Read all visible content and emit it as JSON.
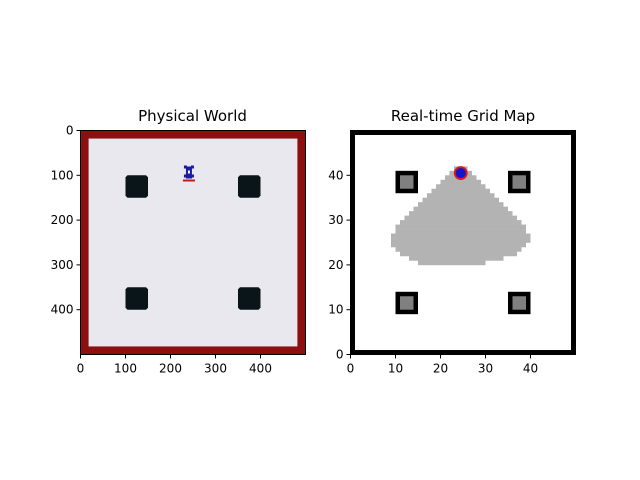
{
  "figure": {
    "background": "#ffffff"
  },
  "chart_data": [
    {
      "type": "image",
      "title": "Physical World",
      "xlabel": "",
      "ylabel": "",
      "xlim": [
        0,
        500
      ],
      "ylim": [
        500,
        0
      ],
      "y_inverted": true,
      "grid": false,
      "x_ticks": [
        0,
        100,
        200,
        300,
        400
      ],
      "y_ticks": [
        0,
        100,
        200,
        300,
        400
      ],
      "colors": {
        "wall": "#8c1010",
        "floor": "#e9e8ee",
        "obstacle": "#0a1519",
        "robot_body": "#1a1aa8",
        "robot_mark": "#c81818"
      },
      "wall_thickness": 18,
      "obstacles": [
        {
          "x": 100,
          "y": 100,
          "w": 50,
          "h": 50
        },
        {
          "x": 350,
          "y": 100,
          "w": 50,
          "h": 50
        },
        {
          "x": 100,
          "y": 350,
          "w": 50,
          "h": 50
        },
        {
          "x": 350,
          "y": 350,
          "w": 50,
          "h": 50
        }
      ],
      "robot": {
        "x": 241,
        "y": 96,
        "heading": "up"
      }
    },
    {
      "type": "heatmap",
      "title": "Real-time Grid Map",
      "xlabel": "",
      "ylabel": "",
      "xlim": [
        0,
        50
      ],
      "ylim": [
        0,
        50
      ],
      "grid": false,
      "x_ticks": [
        0,
        10,
        20,
        30,
        40
      ],
      "y_ticks": [
        0,
        10,
        20,
        30,
        40
      ],
      "colors": {
        "unknown": "#ffffff",
        "occupied": "#000000",
        "explored": "#b3b3b3",
        "inner": "#808080",
        "robot_fill": "#1515c8",
        "robot_edge": "#e01818"
      },
      "border": [
        0,
        49
      ],
      "obstacle_boxes": [
        {
          "x0": 10,
          "x1": 14,
          "y0": 36,
          "y1": 40
        },
        {
          "x0": 35,
          "x1": 39,
          "y0": 36,
          "y1": 40
        },
        {
          "x0": 10,
          "x1": 14,
          "y0": 9,
          "y1": 13
        },
        {
          "x0": 35,
          "x1": 39,
          "y0": 9,
          "y1": 13
        }
      ],
      "explored_rows": [
        {
          "y": 41,
          "x0": 23,
          "x1": 25
        },
        {
          "y": 40,
          "x0": 22,
          "x1": 26
        },
        {
          "y": 39,
          "x0": 21,
          "x1": 27
        },
        {
          "y": 38,
          "x0": 20,
          "x1": 28
        },
        {
          "y": 37,
          "x0": 19,
          "x1": 29
        },
        {
          "y": 36,
          "x0": 18,
          "x1": 30
        },
        {
          "y": 35,
          "x0": 17,
          "x1": 31
        },
        {
          "y": 34,
          "x0": 16,
          "x1": 32
        },
        {
          "y": 33,
          "x0": 15,
          "x1": 33
        },
        {
          "y": 32,
          "x0": 14,
          "x1": 34
        },
        {
          "y": 31,
          "x0": 13,
          "x1": 35
        },
        {
          "y": 30,
          "x0": 12,
          "x1": 36
        },
        {
          "y": 29,
          "x0": 11,
          "x1": 37
        },
        {
          "y": 28,
          "x0": 10,
          "x1": 38
        },
        {
          "y": 27,
          "x0": 10,
          "x1": 38
        },
        {
          "y": 26,
          "x0": 9,
          "x1": 39
        },
        {
          "y": 25,
          "x0": 9,
          "x1": 39
        },
        {
          "y": 24,
          "x0": 9,
          "x1": 38
        },
        {
          "y": 23,
          "x0": 10,
          "x1": 37
        },
        {
          "y": 22,
          "x0": 11,
          "x1": 36
        },
        {
          "y": 21,
          "x0": 13,
          "x1": 33
        },
        {
          "y": 20,
          "x0": 15,
          "x1": 29
        }
      ],
      "robot": {
        "x": 24,
        "y": 40
      }
    }
  ]
}
